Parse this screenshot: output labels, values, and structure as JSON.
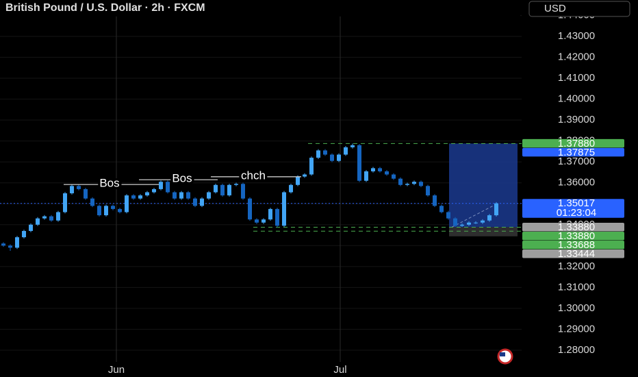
{
  "chart_data": {
    "type": "candlestick",
    "title": "British Pound / U.S. Dollar · 2h · FXCM",
    "currency": "USD",
    "ylim": [
      1.2744,
      1.4474
    ],
    "yticks": [
      {
        "value": 1.28,
        "label": "1.28000"
      },
      {
        "value": 1.29,
        "label": "1.29000"
      },
      {
        "value": 1.3,
        "label": "1.30000"
      },
      {
        "value": 1.31,
        "label": "1.31000"
      },
      {
        "value": 1.32,
        "label": "1.32000"
      },
      {
        "value": 1.33,
        "label": "1.33000"
      },
      {
        "value": 1.34,
        "label": "1.34000"
      },
      {
        "value": 1.35,
        "label": "1.35000"
      },
      {
        "value": 1.36,
        "label": "1.36000"
      },
      {
        "value": 1.37,
        "label": "1.37000"
      },
      {
        "value": 1.38,
        "label": "1.38000"
      },
      {
        "value": 1.39,
        "label": "1.39000"
      },
      {
        "value": 1.4,
        "label": "1.40000"
      },
      {
        "value": 1.41,
        "label": "1.41000"
      },
      {
        "value": 1.42,
        "label": "1.42000"
      },
      {
        "value": 1.43,
        "label": "1.43000"
      },
      {
        "value": 1.44,
        "label": "1.44000"
      }
    ],
    "xlim": [
      -0.5,
      75.7
    ],
    "xticks": [
      {
        "value": 16.5,
        "label": "Jun"
      },
      {
        "value": 49.2,
        "label": "Jul"
      }
    ],
    "up_color": "#42a5f5",
    "down_color": "#1565c0",
    "open": [
      1.331,
      1.33,
      1.329,
      1.334,
      1.337,
      1.34,
      1.343,
      1.344,
      1.342,
      1.346,
      1.355,
      1.3585,
      1.357,
      1.3525,
      1.349,
      1.3445,
      1.349,
      1.3475,
      1.346,
      1.354,
      1.3525,
      1.354,
      1.3555,
      1.357,
      1.3605,
      1.3555,
      1.3525,
      1.3555,
      1.3525,
      1.349,
      1.3525,
      1.3555,
      1.359,
      1.354,
      1.359,
      1.3595,
      1.3525,
      1.3425,
      1.341,
      1.3425,
      1.3475,
      1.3395,
      1.3555,
      1.359,
      1.363,
      1.364,
      1.372,
      1.3755,
      1.3735,
      1.3705,
      1.3735,
      1.377,
      1.378,
      1.361,
      1.3655,
      1.367,
      1.3655,
      1.364,
      1.362,
      1.359,
      1.3595,
      1.3605,
      1.3585,
      1.354,
      1.349,
      1.346,
      1.343,
      1.3395,
      1.34,
      1.341,
      1.341,
      1.342,
      1.3445
    ],
    "high": [
      1.3316,
      1.3306,
      1.3346,
      1.3376,
      1.3406,
      1.3436,
      1.3446,
      1.3446,
      1.3466,
      1.3556,
      1.3591,
      1.3591,
      1.3576,
      1.3531,
      1.3496,
      1.3496,
      1.3496,
      1.3481,
      1.3546,
      1.3546,
      1.3546,
      1.3561,
      1.3576,
      1.3611,
      1.3611,
      1.3561,
      1.3561,
      1.3561,
      1.3531,
      1.3531,
      1.3561,
      1.3596,
      1.3596,
      1.3596,
      1.3601,
      1.3601,
      1.3531,
      1.3431,
      1.3431,
      1.3481,
      1.3481,
      1.3561,
      1.3596,
      1.3636,
      1.3646,
      1.3726,
      1.3761,
      1.3761,
      1.3741,
      1.3741,
      1.3776,
      1.3788,
      1.3786,
      1.3661,
      1.3676,
      1.3676,
      1.3661,
      1.3646,
      1.3626,
      1.3601,
      1.3611,
      1.3611,
      1.3591,
      1.3546,
      1.3496,
      1.3466,
      1.3436,
      1.3406,
      1.3416,
      1.3416,
      1.3426,
      1.3451,
      1.3508
    ],
    "low": [
      1.3294,
      1.3275,
      1.3284,
      1.3334,
      1.3364,
      1.3394,
      1.3424,
      1.3414,
      1.3414,
      1.3454,
      1.3544,
      1.3564,
      1.3519,
      1.3484,
      1.3439,
      1.3439,
      1.3469,
      1.3454,
      1.3454,
      1.3519,
      1.3519,
      1.3534,
      1.3549,
      1.3564,
      1.3549,
      1.3519,
      1.3519,
      1.3519,
      1.3484,
      1.3484,
      1.3519,
      1.3549,
      1.3534,
      1.3534,
      1.3584,
      1.3519,
      1.3419,
      1.3404,
      1.3404,
      1.3419,
      1.3388,
      1.3389,
      1.3549,
      1.3584,
      1.3624,
      1.3634,
      1.3714,
      1.3729,
      1.3699,
      1.3699,
      1.3729,
      1.3764,
      1.3604,
      1.3604,
      1.3649,
      1.3649,
      1.3634,
      1.3614,
      1.3584,
      1.3584,
      1.3589,
      1.3579,
      1.3534,
      1.3484,
      1.3454,
      1.3424,
      1.3389,
      1.3389,
      1.3394,
      1.3404,
      1.3404,
      1.3414,
      1.3439
    ],
    "close": [
      1.33,
      1.329,
      1.334,
      1.337,
      1.34,
      1.343,
      1.344,
      1.342,
      1.346,
      1.355,
      1.3585,
      1.357,
      1.3525,
      1.349,
      1.3445,
      1.349,
      1.3475,
      1.346,
      1.354,
      1.3525,
      1.354,
      1.3555,
      1.357,
      1.3605,
      1.3555,
      1.3525,
      1.3555,
      1.3525,
      1.349,
      1.3525,
      1.3555,
      1.359,
      1.354,
      1.359,
      1.3595,
      1.3525,
      1.3425,
      1.341,
      1.3425,
      1.3475,
      1.3395,
      1.3555,
      1.359,
      1.363,
      1.364,
      1.372,
      1.3755,
      1.3735,
      1.3705,
      1.3735,
      1.377,
      1.378,
      1.361,
      1.3655,
      1.367,
      1.3655,
      1.364,
      1.362,
      1.359,
      1.3595,
      1.3605,
      1.3585,
      1.354,
      1.349,
      1.346,
      1.343,
      1.3395,
      1.34,
      1.341,
      1.341,
      1.342,
      1.3445,
      1.3502
    ],
    "annotations": [
      {
        "text": "Bos",
        "level": 1.3592
      },
      {
        "text": "Bos",
        "level": 1.3615
      },
      {
        "text": "chch",
        "level": 1.3629
      }
    ],
    "price_labels": [
      {
        "value": 1.3788,
        "label": "1.37880",
        "color": "#4caf50"
      },
      {
        "value": 1.37875,
        "label": "1.37875",
        "color": "#2962ff"
      },
      {
        "value": 1.35017,
        "label": "1.35017",
        "color": "#2962ff",
        "countdown": "01:23:04"
      },
      {
        "value": 1.3388,
        "label": "1.33880",
        "color": "#9e9e9e"
      },
      {
        "value": 1.3388,
        "label": "1.33880",
        "color": "#4caf50"
      },
      {
        "value": 1.33688,
        "label": "1.33688",
        "color": "#4caf50"
      },
      {
        "value": 1.33444,
        "label": "1.33444",
        "color": "#9e9e9e"
      }
    ]
  }
}
